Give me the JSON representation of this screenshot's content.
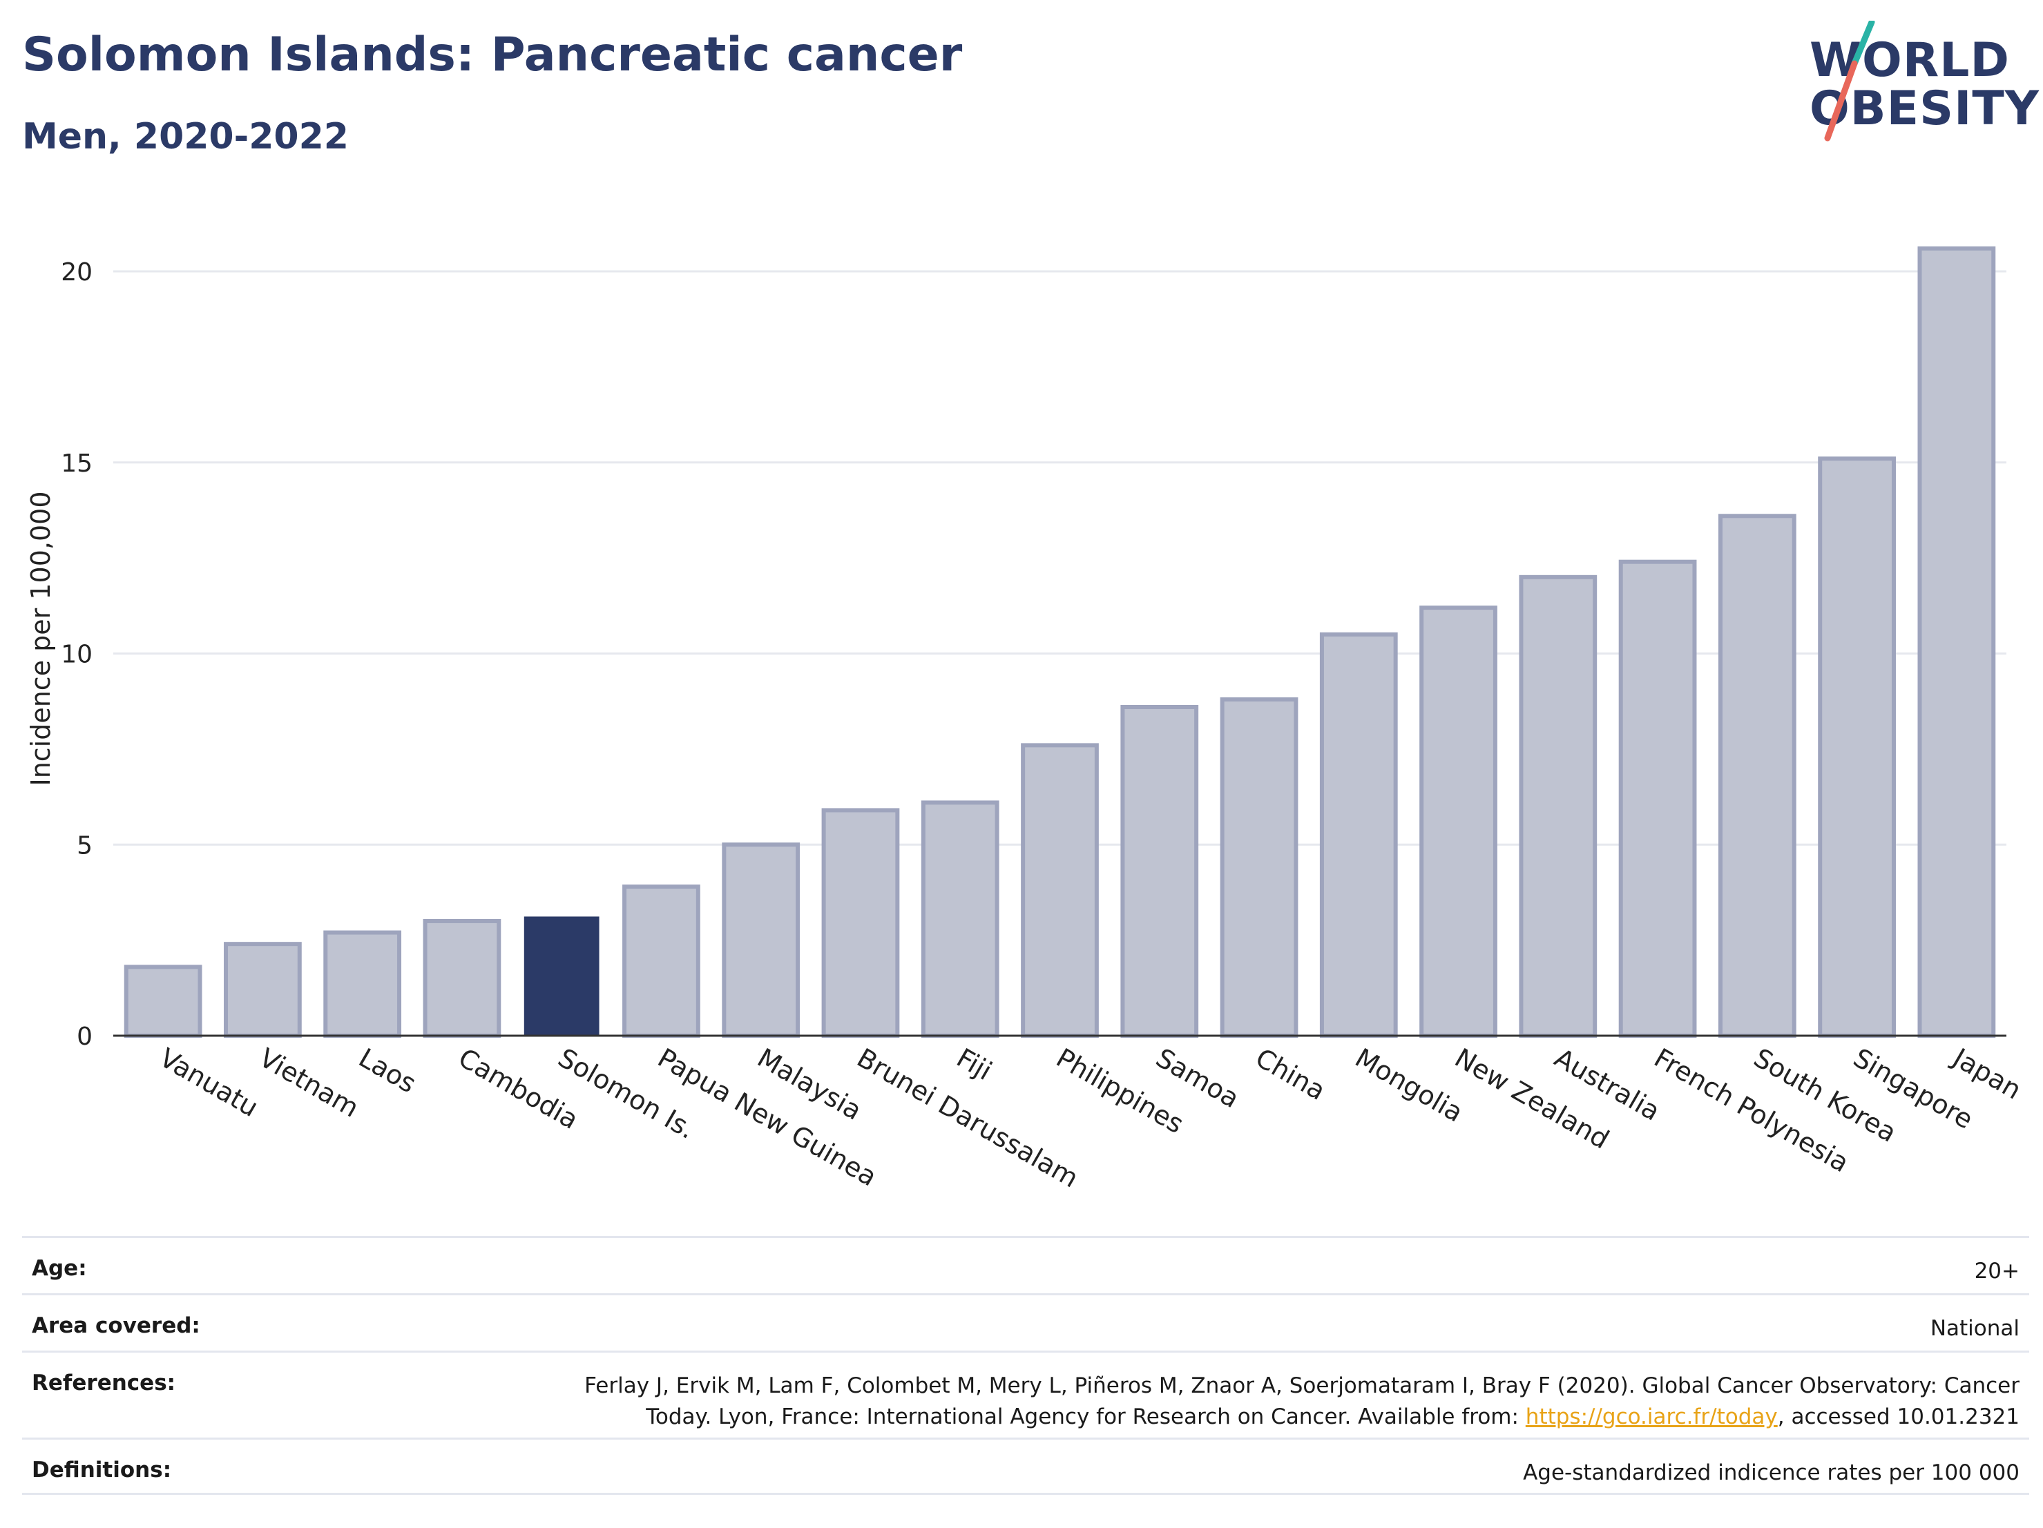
{
  "header": {
    "title": "Solomon Islands: Pancreatic cancer",
    "subtitle": "Men, 2020-2022"
  },
  "logo": {
    "line1": "WORLD",
    "line2": "OBESITY",
    "accent_teal": "#2ab3a6",
    "accent_coral": "#e8675a",
    "text_color": "#2b3a67"
  },
  "colors": {
    "bar": "#bfc3d1",
    "bar_border": "#9ea4bd",
    "highlight": "#2b3a67",
    "grid": "#e6e8ee",
    "axis": "#333333"
  },
  "chart_data": {
    "type": "bar",
    "categories": [
      "Vanuatu",
      "Vietnam",
      "Laos",
      "Cambodia",
      "Solomon Is.",
      "Papua New Guinea",
      "Malaysia",
      "Brunei Darussalam",
      "Fiji",
      "Philippines",
      "Samoa",
      "China",
      "Mongolia",
      "New Zealand",
      "Australia",
      "French Polynesia",
      "South Korea",
      "Singapore",
      "Japan"
    ],
    "values": [
      1.8,
      2.4,
      2.7,
      3.0,
      3.1,
      3.9,
      5.0,
      5.9,
      6.1,
      7.6,
      8.6,
      8.8,
      10.5,
      11.2,
      12.0,
      12.4,
      13.6,
      15.1,
      20.6
    ],
    "highlight": "Solomon Is.",
    "ylabel": "Incidence per 100,000",
    "xlabel": "",
    "ylim": [
      0,
      21.5
    ],
    "yticks": [
      0,
      5,
      10,
      15,
      20
    ],
    "grid": true
  },
  "info": {
    "age_label": "Age:",
    "age_value": "20+",
    "area_label": "Area covered:",
    "area_value": "National",
    "references_label": "References:",
    "references_text_1": "Ferlay J, Ervik M, Lam F, Colombet M, Mery L, Piñeros M, Znaor A, Soerjomataram I, Bray F (2020). Global Cancer Observatory: Cancer Today. Lyon, France: International Agency for Research on Cancer. Available from: ",
    "references_link": "https://gco.iarc.fr/today",
    "references_text_2": ", accessed 10.01.2321",
    "definitions_label": "Definitions:",
    "definitions_value": "Age-standardized indicence rates per 100 000"
  }
}
